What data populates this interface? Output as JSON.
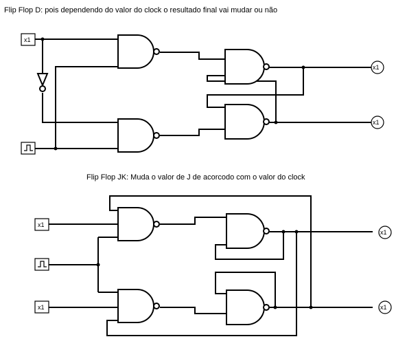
{
  "circuit_d": {
    "title": "Flip Flop D: pois dependendo do valor do clock o resultado final vai mudar ou não",
    "input_label": "x1",
    "output_labels": [
      "x1",
      "x1"
    ]
  },
  "circuit_jk": {
    "title": "Flip Flop JK: Muda o valor de J de acorcodo com o valor do clock",
    "input_labels": [
      "x1",
      "x1"
    ],
    "output_labels": [
      "x1",
      "x1"
    ]
  },
  "icons": {
    "clock": "clock-square-wave-icon",
    "nand": "nand-gate-icon",
    "not": "not-gate-icon",
    "output": "output-probe-icon"
  }
}
